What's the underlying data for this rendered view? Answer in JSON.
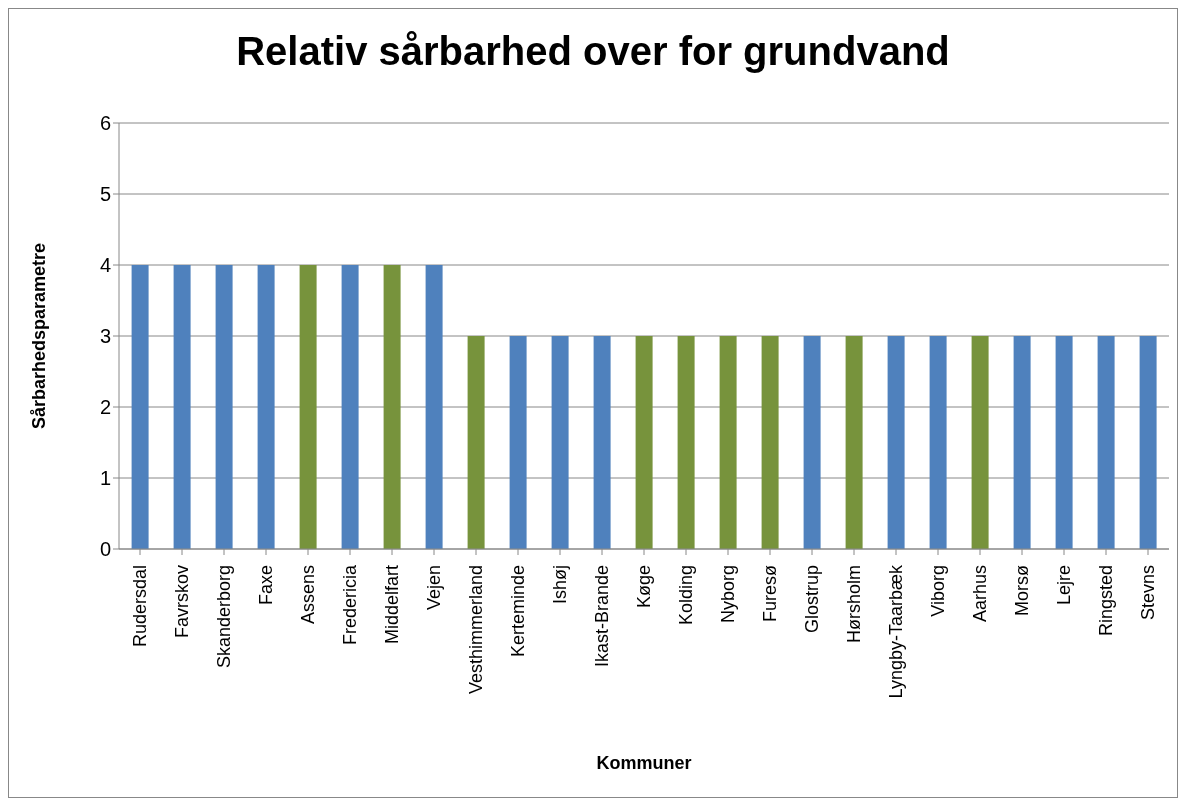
{
  "chart_data": {
    "type": "bar",
    "title": "Relativ sårbarhed over for grundvand",
    "xlabel": "Kommuner",
    "ylabel": "Sårbarhedsparametre",
    "categories": [
      "Rudersdal",
      "Favrskov",
      "Skanderborg",
      "Faxe",
      "Assens",
      "Fredericia",
      "Middelfart",
      "Vejen",
      "Vesthimmerland",
      "Kerteminde",
      "Ishøj",
      "Ikast-Brande",
      "Køge",
      "Kolding",
      "Nyborg",
      "Furesø",
      "Glostrup",
      "Hørsholm",
      "Lyngby-Taarbæk",
      "Viborg",
      "Aarhus",
      "Morsø",
      "Lejre",
      "Ringsted",
      "Stevns"
    ],
    "values": [
      4,
      4,
      4,
      4,
      4,
      4,
      4,
      4,
      3,
      3,
      3,
      3,
      3,
      3,
      3,
      3,
      3,
      3,
      3,
      3,
      3,
      3,
      3,
      3,
      3
    ],
    "colors": [
      "#4f81bd",
      "#4f81bd",
      "#4f81bd",
      "#4f81bd",
      "#77933c",
      "#4f81bd",
      "#77933c",
      "#4f81bd",
      "#77933c",
      "#4f81bd",
      "#4f81bd",
      "#4f81bd",
      "#77933c",
      "#77933c",
      "#77933c",
      "#77933c",
      "#4f81bd",
      "#77933c",
      "#4f81bd",
      "#4f81bd",
      "#77933c",
      "#4f81bd",
      "#4f81bd",
      "#4f81bd",
      "#4f81bd"
    ],
    "ylim": [
      0,
      6
    ],
    "yticks": [
      0,
      1,
      2,
      3,
      4,
      5,
      6
    ],
    "grid": "y"
  }
}
